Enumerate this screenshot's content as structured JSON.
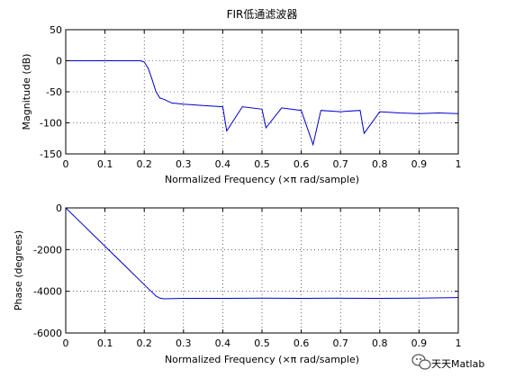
{
  "chart_data": [
    {
      "type": "line",
      "title": "FIR低通滤波器",
      "xlabel": "Normalized Frequency  (×π rad/sample)",
      "ylabel": "Magnitude (dB)",
      "xlim": [
        0,
        1
      ],
      "ylim": [
        -150,
        50
      ],
      "x_ticks": [
        0,
        0.1,
        0.2,
        0.3,
        0.4,
        0.5,
        0.6,
        0.7,
        0.8,
        0.9,
        1
      ],
      "x_tick_labels": [
        "0",
        "0.1",
        "0.2",
        "0.3",
        "0.4",
        "0.5",
        "0.6",
        "0.7",
        "0.8",
        "0.9",
        "1"
      ],
      "y_ticks": [
        -150,
        -100,
        -50,
        0,
        50
      ],
      "y_tick_labels": [
        "-150",
        "-100",
        "-50",
        "0",
        "50"
      ],
      "grid": true,
      "series_color": "#0000cc",
      "series": [
        {
          "x": [
            0,
            0.05,
            0.1,
            0.15,
            0.19,
            0.2,
            0.21,
            0.22,
            0.23,
            0.24,
            0.25,
            0.27,
            0.3,
            0.35,
            0.4,
            0.41,
            0.45,
            0.5,
            0.51,
            0.55,
            0.6,
            0.63,
            0.65,
            0.7,
            0.75,
            0.76,
            0.8,
            0.85,
            0.9,
            0.95,
            1
          ],
          "y": [
            0,
            0,
            0,
            0,
            0,
            -2,
            -12,
            -30,
            -50,
            -60,
            -62,
            -68,
            -70,
            -72,
            -74,
            -113,
            -74,
            -78,
            -108,
            -76,
            -80,
            -135,
            -80,
            -82,
            -80,
            -117,
            -82,
            -84,
            -85,
            -84,
            -85
          ]
        }
      ]
    },
    {
      "type": "line",
      "title": "",
      "xlabel": "Normalized Frequency  (×π rad/sample)",
      "ylabel": "Phase (degrees)",
      "xlim": [
        0,
        1
      ],
      "ylim": [
        -6000,
        0
      ],
      "x_ticks": [
        0,
        0.1,
        0.2,
        0.3,
        0.4,
        0.5,
        0.6,
        0.7,
        0.8,
        0.9,
        1
      ],
      "x_tick_labels": [
        "0",
        "0.1",
        "0.2",
        "0.3",
        "0.4",
        "0.5",
        "0.6",
        "0.7",
        "0.8",
        "0.9",
        "1"
      ],
      "y_ticks": [
        -6000,
        -4000,
        -2000,
        0
      ],
      "y_tick_labels": [
        "-6000",
        "-4000",
        "-2000",
        "0"
      ],
      "grid": true,
      "series_color": "#0000cc",
      "series": [
        {
          "x": [
            0,
            0.05,
            0.1,
            0.15,
            0.2,
            0.23,
            0.24,
            0.25,
            0.3,
            0.4,
            0.5,
            0.6,
            0.7,
            0.8,
            0.9,
            1
          ],
          "y": [
            0,
            -920,
            -1840,
            -2760,
            -3680,
            -4230,
            -4330,
            -4360,
            -4340,
            -4340,
            -4330,
            -4340,
            -4330,
            -4340,
            -4330,
            -4300
          ]
        }
      ]
    }
  ],
  "watermark": {
    "text": "天天Matlab",
    "icon": "wechat-icon"
  }
}
